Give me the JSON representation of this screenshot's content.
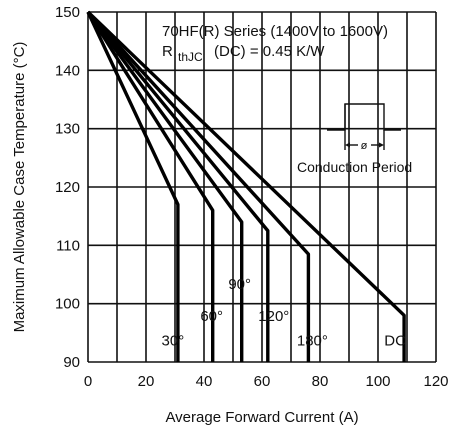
{
  "chart_data": {
    "type": "line",
    "title": "",
    "xlabel": "Average Forward Current (A)",
    "ylabel": "Maximum Allowable Case Temperature (°C)",
    "xlim": [
      0,
      120
    ],
    "ylim": [
      90,
      150
    ],
    "xticks": [
      "0",
      "20",
      "40",
      "60",
      "80",
      "100",
      "120"
    ],
    "yticks": [
      "90",
      "100",
      "110",
      "120",
      "130",
      "140",
      "150"
    ],
    "grid": true,
    "annotations": {
      "series_line": "70HF(R) Series (1400V to 1600V)",
      "rth_prefix": "R",
      "rth_subscript": "thJC",
      "rth_suffix": "(DC) = 0.45 K/W",
      "conduction_label": "Conduction Period",
      "phi_symbol": "ø"
    },
    "series": [
      {
        "name": "30°",
        "x": [
          0,
          31,
          31
        ],
        "y": [
          150,
          117,
          90
        ]
      },
      {
        "name": "60°",
        "x": [
          0,
          43,
          43
        ],
        "y": [
          150,
          116,
          90
        ]
      },
      {
        "name": "90°",
        "x": [
          0,
          53,
          53
        ],
        "y": [
          150,
          114,
          90
        ]
      },
      {
        "name": "120°",
        "x": [
          0,
          62,
          62
        ],
        "y": [
          150,
          112.5,
          90
        ]
      },
      {
        "name": "180°",
        "x": [
          0,
          76,
          76
        ],
        "y": [
          150,
          108.5,
          90
        ]
      },
      {
        "name": "DC",
        "x": [
          0,
          109,
          109
        ],
        "y": [
          150,
          98,
          90
        ]
      }
    ]
  }
}
